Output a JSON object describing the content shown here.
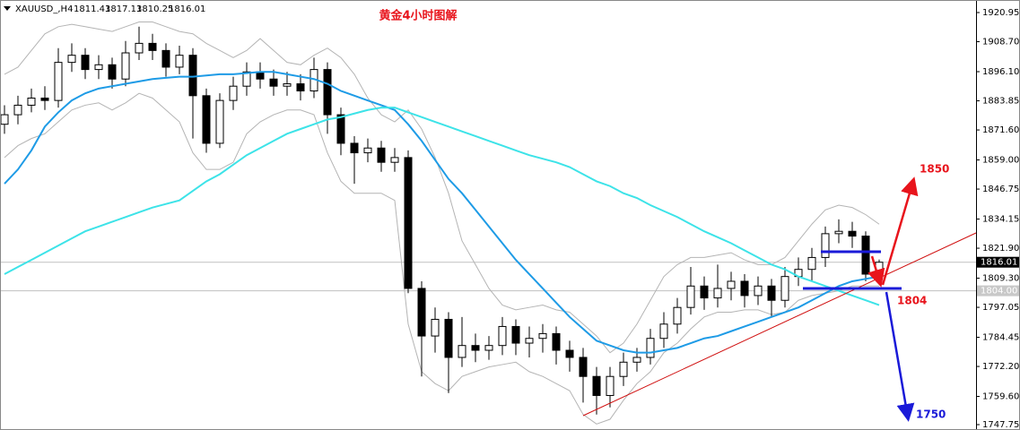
{
  "chart_data": {
    "type": "candlestick",
    "title": "黄金4小时图解",
    "symbol": "XAUUSD_,H4",
    "ohlc": {
      "open": [
        1874,
        1878,
        1882,
        1885,
        1884,
        1900,
        1903,
        1897,
        1899,
        1893,
        1904,
        1908,
        1905,
        1898,
        1903,
        1886,
        1866,
        1884,
        1890,
        1896,
        1893,
        1890,
        1891,
        1888,
        1897,
        1878,
        1866,
        1862,
        1864,
        1858,
        1860,
        1805,
        1785,
        1792,
        1776,
        1781,
        1779,
        1781,
        1789,
        1782,
        1784,
        1786,
        1779,
        1776,
        1768,
        1760,
        1768,
        1774,
        1776,
        1784,
        1790,
        1797,
        1806,
        1801,
        1805,
        1808,
        1802,
        1806,
        1800,
        1810,
        1813,
        1818,
        1828,
        1829,
        1827,
        1811.43
      ],
      "high": [
        1882,
        1886,
        1889,
        1890,
        1906,
        1908,
        1906,
        1903,
        1902,
        1909,
        1915,
        1912,
        1908,
        1907,
        1906,
        1889,
        1887,
        1894,
        1900,
        1900,
        1897,
        1896,
        1895,
        1902,
        1900,
        1881,
        1869,
        1868,
        1867,
        1864,
        1863,
        1808,
        1797,
        1795,
        1793,
        1786,
        1785,
        1793,
        1792,
        1789,
        1790,
        1789,
        1783,
        1780,
        1772,
        1772,
        1778,
        1780,
        1788,
        1795,
        1801,
        1814,
        1810,
        1815,
        1812,
        1811,
        1810,
        1809,
        1814,
        1818,
        1822,
        1831,
        1834,
        1833,
        1829,
        1817.13
      ],
      "low": [
        1870,
        1874,
        1879,
        1880,
        1881,
        1896,
        1893,
        1893,
        1889,
        1890,
        1901,
        1901,
        1894,
        1895,
        1868,
        1862,
        1864,
        1880,
        1886,
        1889,
        1886,
        1886,
        1884,
        1885,
        1870,
        1861,
        1849,
        1858,
        1854,
        1854,
        1803,
        1768,
        1778,
        1761,
        1772,
        1774,
        1775,
        1777,
        1777,
        1776,
        1778,
        1773,
        1770,
        1757,
        1752,
        1755,
        1764,
        1770,
        1773,
        1780,
        1786,
        1794,
        1796,
        1797,
        1800,
        1797,
        1798,
        1793,
        1797,
        1806,
        1808,
        1814,
        1824,
        1822,
        1808,
        1810.25
      ],
      "close": [
        1878,
        1882,
        1885,
        1884,
        1900,
        1903,
        1897,
        1899,
        1893,
        1904,
        1908,
        1905,
        1898,
        1903,
        1886,
        1866,
        1884,
        1890,
        1896,
        1893,
        1890,
        1891,
        1888,
        1897,
        1878,
        1866,
        1862,
        1864,
        1858,
        1860,
        1805,
        1785,
        1792,
        1776,
        1781,
        1779,
        1781,
        1789,
        1782,
        1784,
        1786,
        1779,
        1776,
        1768,
        1760,
        1768,
        1774,
        1776,
        1784,
        1790,
        1797,
        1806,
        1801,
        1805,
        1808,
        1802,
        1806,
        1800,
        1810,
        1813,
        1818,
        1828,
        1829,
        1827,
        1811,
        1816.01
      ]
    },
    "bands": [
      {
        "color": "#b4b4b4",
        "values": [
          1895,
          1898,
          1905,
          1912,
          1915,
          1916,
          1915,
          1914,
          1913,
          1915,
          1917,
          1917,
          1915,
          1913,
          1912,
          1908,
          1905,
          1902,
          1905,
          1910,
          1905,
          1900,
          1899,
          1903,
          1906,
          1902,
          1895,
          1885,
          1878,
          1875,
          1880,
          1872,
          1860,
          1845,
          1825,
          1815,
          1805,
          1798,
          1796,
          1797,
          1798,
          1796,
          1795,
          1790,
          1785,
          1778,
          1782,
          1790,
          1800,
          1810,
          1815,
          1818,
          1818,
          1819,
          1820,
          1817,
          1815,
          1815,
          1818,
          1825,
          1832,
          1838,
          1840,
          1839,
          1836,
          1832
        ]
      },
      {
        "color": "#b4b4b4",
        "values": [
          1860,
          1865,
          1868,
          1870,
          1875,
          1880,
          1882,
          1883,
          1880,
          1883,
          1887,
          1885,
          1880,
          1875,
          1862,
          1855,
          1855,
          1858,
          1870,
          1875,
          1878,
          1880,
          1880,
          1878,
          1862,
          1850,
          1845,
          1845,
          1845,
          1842,
          1790,
          1770,
          1765,
          1762,
          1768,
          1770,
          1772,
          1773,
          1774,
          1770,
          1768,
          1765,
          1762,
          1752,
          1748,
          1750,
          1758,
          1765,
          1770,
          1778,
          1782,
          1788,
          1793,
          1795,
          1795,
          1796,
          1796,
          1794,
          1795,
          1800,
          1802,
          1803,
          1804,
          1806,
          1806,
          1806
        ]
      }
    ],
    "lines": [
      {
        "color": "#1e9be6",
        "values": [
          1849,
          1855,
          1863,
          1873,
          1879,
          1884,
          1887,
          1889,
          1890,
          1891,
          1892,
          1893,
          1893.5,
          1894,
          1894,
          1894.5,
          1895,
          1895,
          1895.5,
          1896,
          1896,
          1895,
          1894,
          1893,
          1891,
          1888,
          1886,
          1884,
          1882,
          1880,
          1874,
          1867,
          1859,
          1851,
          1845,
          1838,
          1831,
          1824,
          1817,
          1811,
          1805,
          1799,
          1793,
          1788,
          1783,
          1781,
          1779,
          1778,
          1778,
          1779,
          1780,
          1782,
          1784,
          1785,
          1787,
          1789,
          1791,
          1793,
          1795,
          1797,
          1800,
          1803,
          1806,
          1808,
          1809,
          1810
        ]
      },
      {
        "color": "#3de3e8",
        "values": [
          1811,
          1814,
          1817,
          1820,
          1823,
          1826,
          1829,
          1831,
          1833,
          1835,
          1837,
          1839,
          1840.5,
          1842,
          1846,
          1850,
          1853,
          1857,
          1861,
          1864,
          1867,
          1870,
          1872,
          1874,
          1876,
          1877,
          1878.5,
          1880,
          1881,
          1881,
          1879,
          1877,
          1875,
          1873,
          1871,
          1869,
          1867,
          1865,
          1863,
          1861,
          1859.5,
          1858,
          1856,
          1853,
          1850,
          1848,
          1845,
          1843,
          1840,
          1837.5,
          1835,
          1832,
          1829,
          1826.5,
          1824,
          1821,
          1818,
          1815,
          1813,
          1810,
          1808,
          1806,
          1804,
          1802,
          1800,
          1798
        ]
      }
    ],
    "price_lines": [
      1816.01,
      {
        "value": 1804,
        "label": "1804.00"
      }
    ],
    "ylim": [
      1745.49,
      1926.22
    ],
    "yticks": [
      1920.95,
      {
        "value": 1908.7,
        "label": "1908.70"
      },
      {
        "value": 1896.1,
        "label": "1896.10"
      },
      1883.85,
      {
        "value": 1871.6,
        "label": "1871.60"
      },
      {
        "value": 1859,
        "label": "1859.00"
      },
      1846.75,
      1834.15,
      {
        "value": 1821.9,
        "label": "1821.90"
      },
      {
        "value": 1809.3,
        "label": "1809.30"
      },
      1797.05,
      1784.45,
      {
        "value": 1772.2,
        "label": "1772.20"
      },
      {
        "value": 1759.6,
        "label": "1759.60"
      },
      1747.75
    ],
    "annotations": [
      {
        "text": "1850",
        "color": "#e8141c"
      },
      {
        "text": "1804",
        "color": "#e8141c"
      },
      {
        "text": "1750",
        "color": "#1a1ad8"
      }
    ]
  }
}
